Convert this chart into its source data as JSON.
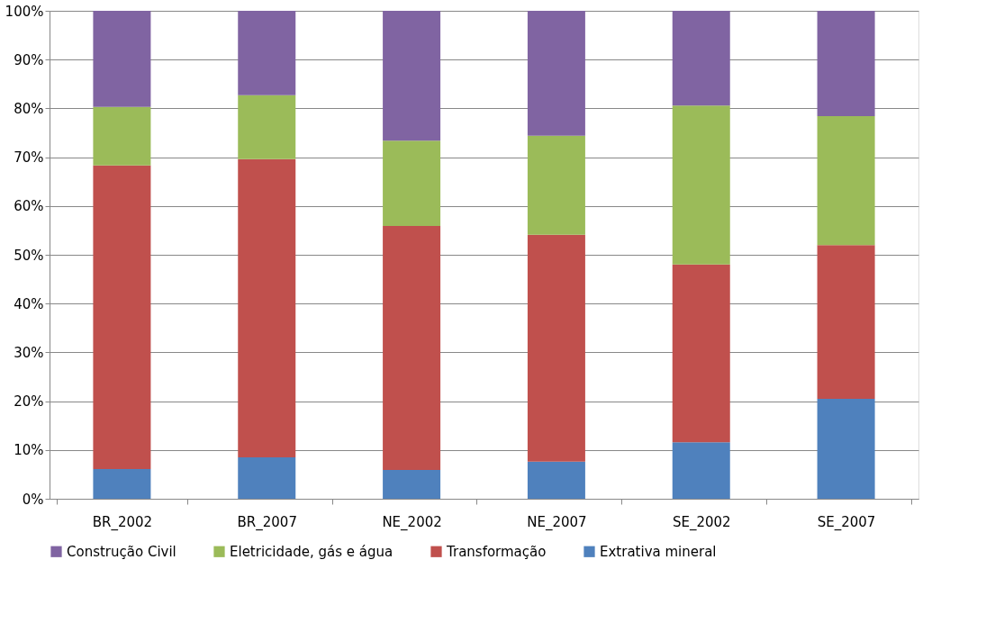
{
  "chart_data": {
    "type": "bar",
    "stacked": true,
    "categories": [
      "BR_2002",
      "BR_2007",
      "NE_2002",
      "NE_2007",
      "SE_2002",
      "SE_2007"
    ],
    "series": [
      {
        "name": "Extrativa mineral",
        "color": "#4f81bd",
        "values": [
          6.1,
          8.5,
          5.9,
          7.6,
          11.6,
          20.5
        ]
      },
      {
        "name": "Transformação",
        "color": "#c0504d",
        "values": [
          62.2,
          61.1,
          50.0,
          46.5,
          36.4,
          31.5
        ]
      },
      {
        "name": "Eletricidade, gás e água",
        "color": "#9bbb59",
        "values": [
          12.0,
          13.1,
          17.5,
          20.3,
          32.6,
          26.4
        ]
      },
      {
        "name": "Construção Civil",
        "color": "#8064a2",
        "values": [
          19.7,
          17.3,
          26.6,
          25.6,
          19.4,
          21.6
        ]
      }
    ],
    "ylim": [
      0,
      100
    ],
    "yticks": [
      {
        "value": 0,
        "label": "0%"
      },
      {
        "value": 10,
        "label": "10%"
      },
      {
        "value": 20,
        "label": "20%"
      },
      {
        "value": 30,
        "label": "30%"
      },
      {
        "value": 40,
        "label": "40%"
      },
      {
        "value": 50,
        "label": "50%"
      },
      {
        "value": 60,
        "label": "60%"
      },
      {
        "value": 70,
        "label": "70%"
      },
      {
        "value": 80,
        "label": "80%"
      },
      {
        "value": 90,
        "label": "90%"
      },
      {
        "value": 100,
        "label": "100%"
      }
    ],
    "grid": "y",
    "legend": "bottom"
  }
}
